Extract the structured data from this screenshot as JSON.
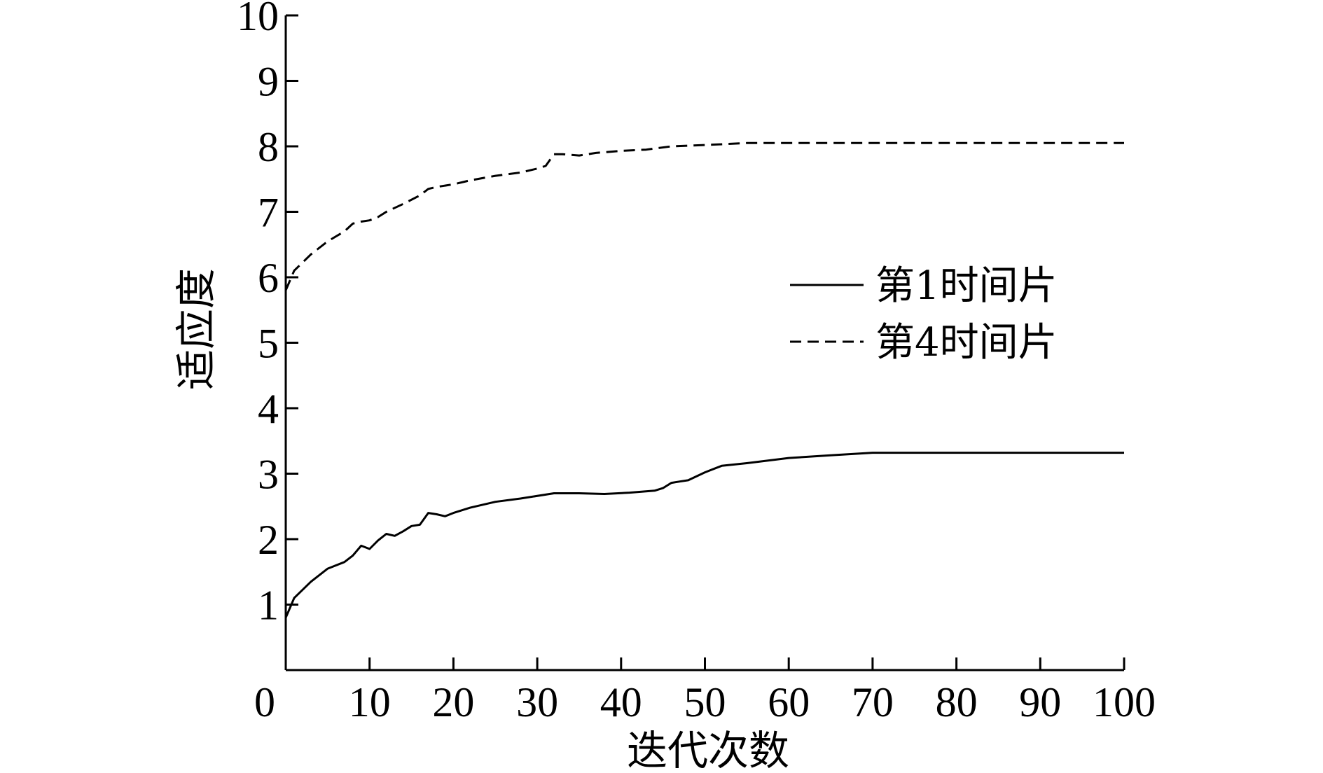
{
  "chart_data": {
    "type": "line",
    "title": "",
    "xlabel": "迭代次数",
    "ylabel": "适应度",
    "xlim": [
      0,
      100
    ],
    "ylim": [
      0,
      10
    ],
    "x_ticks": [
      0,
      10,
      20,
      30,
      40,
      50,
      60,
      70,
      80,
      90,
      100
    ],
    "y_ticks": [
      1,
      2,
      3,
      4,
      5,
      6,
      7,
      8,
      9,
      10
    ],
    "x_tick_labels": [
      "0",
      "10",
      "20",
      "30",
      "40",
      "50",
      "60",
      "70",
      "80",
      "90",
      "100"
    ],
    "y_tick_labels": [
      "1",
      "2",
      "3",
      "4",
      "5",
      "6",
      "7",
      "8",
      "9",
      "10"
    ],
    "grid": false,
    "legend_position": "right",
    "series": [
      {
        "name": "第1时间片",
        "line_style": "solid",
        "color": "#000000",
        "x": [
          0,
          1,
          3,
          5,
          7,
          8,
          9,
          10,
          11,
          12,
          13,
          14,
          15,
          16,
          17,
          18,
          19,
          20,
          22,
          25,
          28,
          32,
          35,
          38,
          41,
          44,
          45,
          46,
          47,
          48,
          50,
          52,
          55,
          60,
          65,
          70,
          80,
          90,
          100
        ],
        "y": [
          0.8,
          1.1,
          1.35,
          1.55,
          1.65,
          1.75,
          1.9,
          1.85,
          1.98,
          2.08,
          2.05,
          2.12,
          2.2,
          2.22,
          2.4,
          2.38,
          2.35,
          2.4,
          2.48,
          2.57,
          2.62,
          2.7,
          2.7,
          2.69,
          2.71,
          2.74,
          2.78,
          2.86,
          2.88,
          2.9,
          3.02,
          3.12,
          3.16,
          3.24,
          3.28,
          3.32,
          3.32,
          3.32,
          3.32
        ]
      },
      {
        "name": "第4时间片",
        "line_style": "dashed",
        "color": "#000000",
        "x": [
          0,
          1,
          3,
          5,
          7,
          8,
          9,
          10,
          11,
          12,
          14,
          16,
          17,
          18,
          20,
          22,
          25,
          28,
          30,
          31,
          32,
          33,
          35,
          37,
          40,
          43,
          46,
          50,
          55,
          60,
          70,
          80,
          90,
          100
        ],
        "y": [
          5.8,
          6.1,
          6.35,
          6.55,
          6.7,
          6.82,
          6.85,
          6.87,
          6.92,
          7.0,
          7.12,
          7.25,
          7.35,
          7.38,
          7.42,
          7.48,
          7.55,
          7.6,
          7.66,
          7.7,
          7.88,
          7.88,
          7.86,
          7.9,
          7.93,
          7.95,
          8.0,
          8.02,
          8.05,
          8.05,
          8.05,
          8.05,
          8.05,
          8.05
        ]
      }
    ]
  }
}
